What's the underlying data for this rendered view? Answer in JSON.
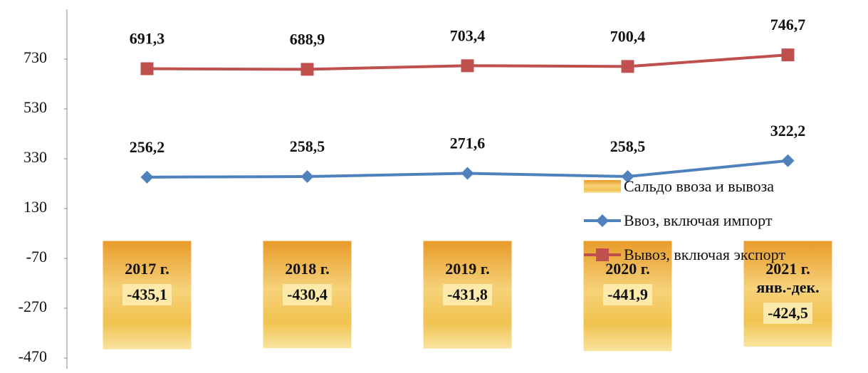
{
  "chart_data": {
    "type": "bar",
    "categories": [
      "2017 г.",
      "2018 г.",
      "2019 г.",
      "2020 г.",
      "2021 г. янв.-дек."
    ],
    "series": [
      {
        "name": "Сальдо ввоза и вывоза",
        "type": "bar",
        "color": "#f2b44a",
        "values": [
          -435.1,
          -430.4,
          -431.8,
          -441.9,
          -424.5
        ],
        "value_labels": [
          "-435,1",
          "-430,4",
          "-431,8",
          "-441,9",
          "-424,5"
        ]
      },
      {
        "name": "Ввоз, включая импорт",
        "type": "line",
        "color": "#4f81bd",
        "values": [
          256.2,
          258.5,
          271.6,
          258.5,
          322.2
        ],
        "value_labels": [
          "256,2",
          "258,5",
          "271,6",
          "258,5",
          "322,2"
        ]
      },
      {
        "name": "Вывоз, включая экспорт",
        "type": "line",
        "color": "#c0504d",
        "values": [
          691.3,
          688.9,
          703.4,
          700.4,
          746.7
        ],
        "value_labels": [
          "691,3",
          "688,9",
          "703,4",
          "700,4",
          "746,7"
        ]
      }
    ],
    "ylim": [
      -470,
      930
    ],
    "yticks": [
      -470,
      -270,
      -70,
      130,
      330,
      530,
      730
    ],
    "legend": "right"
  }
}
